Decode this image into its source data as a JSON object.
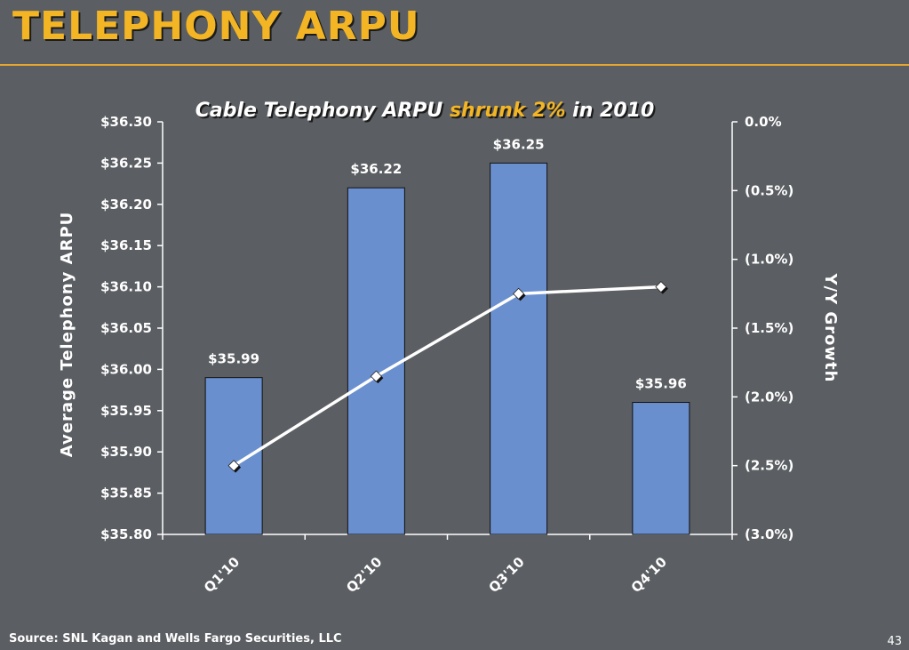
{
  "slide": {
    "title": "TELEPHONY ARPU",
    "source": "Source: SNL Kagan and Wells Fargo Securities, LLC",
    "page_number": "43"
  },
  "chart_title": {
    "part1": "Cable Telephony ARPU ",
    "highlight": "shrunk 2%",
    "part2": " in 2010"
  },
  "colors": {
    "background": "#5b5e62",
    "accent": "#f3b524",
    "bar": "#6a8fcf",
    "line": "#ffffff"
  },
  "chart_data": {
    "type": "bar",
    "categories": [
      "Q1'10",
      "Q2'10",
      "Q3'10",
      "Q4'10"
    ],
    "series": [
      {
        "type": "bar",
        "axis": "left",
        "values": [
          35.99,
          36.22,
          36.25,
          35.96
        ],
        "data_labels": [
          "$35.99",
          "$36.22",
          "$36.25",
          "$35.96"
        ]
      },
      {
        "type": "line",
        "axis": "right",
        "marker": "diamond",
        "values": [
          -2.5,
          -1.85,
          -1.25,
          -1.2
        ]
      }
    ],
    "ylabel": "Average Telephony ARPU",
    "y2label": "Y/Y Growth",
    "ylim": [
      35.8,
      36.3
    ],
    "y2lim": [
      -3.0,
      0.0
    ],
    "yticks": [
      "$35.80",
      "$35.85",
      "$35.90",
      "$35.95",
      "$36.00",
      "$36.05",
      "$36.10",
      "$36.15",
      "$36.20",
      "$36.25",
      "$36.30"
    ],
    "y2ticks": [
      "(3.0%)",
      "(2.5%)",
      "(2.0%)",
      "(1.5%)",
      "(1.0%)",
      "(0.5%)",
      "0.0%"
    ],
    "grid": false,
    "legend": "none"
  }
}
